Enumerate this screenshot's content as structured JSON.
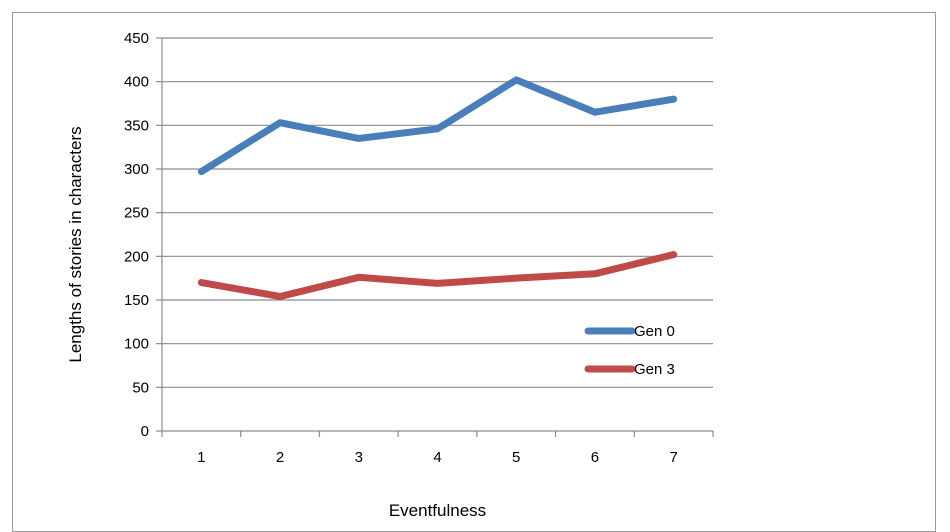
{
  "chart_data": {
    "type": "line",
    "title": "",
    "xlabel": "Eventfulness",
    "ylabel": "Lengths of stories in characters",
    "categories": [
      "1",
      "2",
      "3",
      "4",
      "5",
      "6",
      "7"
    ],
    "ylim": [
      0,
      450
    ],
    "yticks": [
      0,
      50,
      100,
      150,
      200,
      250,
      300,
      350,
      400,
      450
    ],
    "grid": true,
    "legend_position": "right",
    "series": [
      {
        "name": "Gen 0",
        "color": "#4a7ebb",
        "values": [
          297,
          353,
          335,
          346,
          402,
          365,
          380
        ]
      },
      {
        "name": "Gen 3",
        "color": "#be4b48",
        "values": [
          170,
          154,
          176,
          169,
          175,
          180,
          202
        ]
      }
    ]
  }
}
